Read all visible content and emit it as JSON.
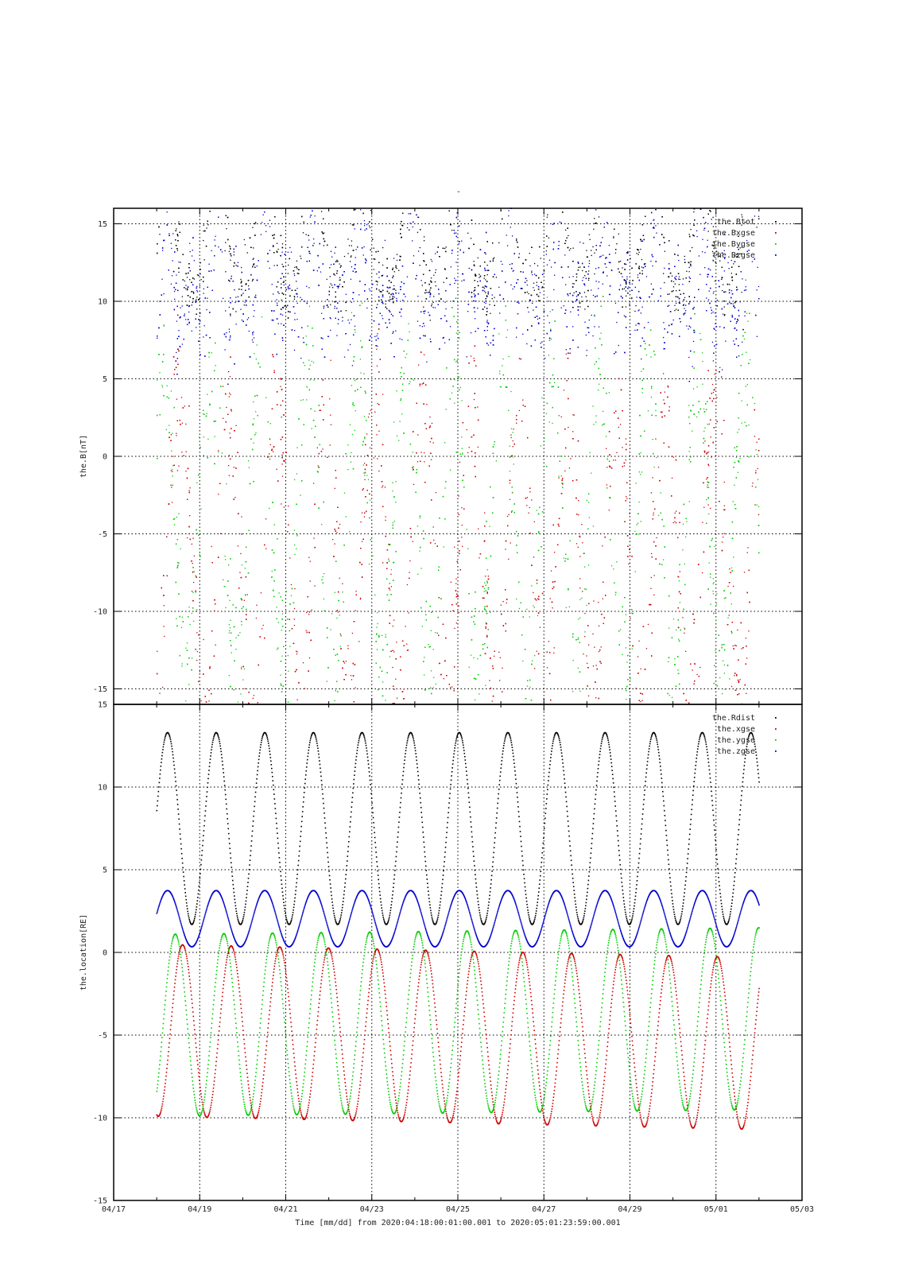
{
  "page": {
    "title_mark": "-",
    "time_axis_label": "Time [mm/dd]  from 2020:04:18:00:01:00.001  to  2020:05:01:23:59:00.001",
    "x_ticks": [
      "04/17",
      "04/19",
      "04/21",
      "04/23",
      "04/25",
      "04/27",
      "04/29",
      "05/01",
      "05/03"
    ]
  },
  "chart_data": [
    {
      "type": "scatter",
      "panel": "top",
      "ylabel": "the.B[nT]",
      "xlabel": "Time [mm/dd]",
      "xlim": [
        "2020-04-17",
        "2020-05-03"
      ],
      "ylim": [
        -16,
        16
      ],
      "yticks": [
        "15",
        "10",
        "5",
        "0",
        "-5",
        "-10",
        "-15"
      ],
      "grid": true,
      "legend_position": "top-right",
      "series": [
        {
          "name": "the.Btot",
          "color": "#000000"
        },
        {
          "name": "the.Bxgse",
          "color": "#cc0000"
        },
        {
          "name": "the.Bygse",
          "color": "#00cc00"
        },
        {
          "name": "the.Bzgse",
          "color": "#0000cc"
        }
      ]
    },
    {
      "type": "scatter",
      "panel": "bottom",
      "ylabel": "the.location[RE]",
      "xlabel": "Time [mm/dd]",
      "xlim": [
        "2020-04-17",
        "2020-05-03"
      ],
      "ylim": [
        -15,
        15
      ],
      "yticks": [
        "15",
        "10",
        "5",
        "0",
        "-5",
        "-10",
        "-15"
      ],
      "grid": true,
      "legend_position": "top-right",
      "series": [
        {
          "name": "the.Rdist",
          "color": "#000000"
        },
        {
          "name": "the.xgse",
          "color": "#cc0000"
        },
        {
          "name": "the.ygse",
          "color": "#00cc00"
        },
        {
          "name": "the.zgse",
          "color": "#0000cc"
        }
      ]
    }
  ]
}
